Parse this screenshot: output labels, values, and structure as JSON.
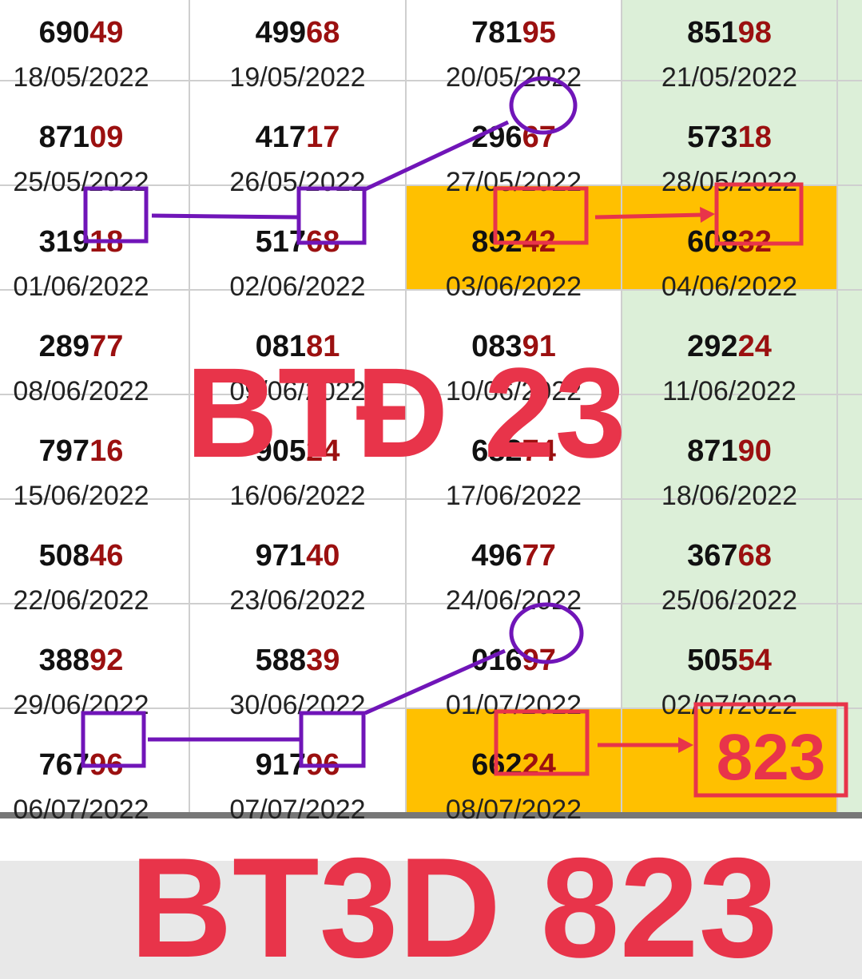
{
  "table": {
    "rows": [
      [
        {
          "head": "690",
          "tail": "49",
          "date": "18/05/2022"
        },
        {
          "head": "499",
          "tail": "68",
          "date": "19/05/2022"
        },
        {
          "head": "781",
          "tail": "95",
          "date": "20/05/2022"
        },
        {
          "head": "851",
          "tail": "98",
          "date": "21/05/2022"
        }
      ],
      [
        {
          "head": "871",
          "tail": "09",
          "date": "25/05/2022"
        },
        {
          "head": "417",
          "tail": "17",
          "date": "26/05/2022"
        },
        {
          "head": "296",
          "tail": "67",
          "date": "27/05/2022"
        },
        {
          "head": "573",
          "tail": "18",
          "date": "28/05/2022"
        }
      ],
      [
        {
          "head": "319",
          "tail": "18",
          "date": "01/06/2022"
        },
        {
          "head": "517",
          "tail": "68",
          "date": "02/06/2022"
        },
        {
          "head": "892",
          "tail": "42",
          "date": "03/06/2022"
        },
        {
          "head": "608",
          "tail": "32",
          "date": "04/06/2022"
        }
      ],
      [
        {
          "head": "289",
          "tail": "77",
          "date": "08/06/2022"
        },
        {
          "head": "081",
          "tail": "81",
          "date": "09/06/2022"
        },
        {
          "head": "083",
          "tail": "91",
          "date": "10/06/2022"
        },
        {
          "head": "292",
          "tail": "24",
          "date": "11/06/2022"
        }
      ],
      [
        {
          "head": "797",
          "tail": "16",
          "date": "15/06/2022"
        },
        {
          "head": "905",
          "tail": "24",
          "date": "16/06/2022"
        },
        {
          "head": "682",
          "tail": "74",
          "date": "17/06/2022"
        },
        {
          "head": "871",
          "tail": "90",
          "date": "18/06/2022"
        }
      ],
      [
        {
          "head": "508",
          "tail": "46",
          "date": "22/06/2022"
        },
        {
          "head": "971",
          "tail": "40",
          "date": "23/06/2022"
        },
        {
          "head": "496",
          "tail": "77",
          "date": "24/06/2022"
        },
        {
          "head": "367",
          "tail": "68",
          "date": "25/06/2022"
        }
      ],
      [
        {
          "head": "388",
          "tail": "92",
          "date": "29/06/2022"
        },
        {
          "head": "588",
          "tail": "39",
          "date": "30/06/2022"
        },
        {
          "head": "016",
          "tail": "97",
          "date": "01/07/2022"
        },
        {
          "head": "505",
          "tail": "54",
          "date": "02/07/2022"
        }
      ],
      [
        {
          "head": "767",
          "tail": "96",
          "date": "06/07/2022"
        },
        {
          "head": "917",
          "tail": "96",
          "date": "07/07/2022"
        },
        {
          "head": "662",
          "tail": "24",
          "date": "08/07/2022"
        }
      ]
    ]
  },
  "highlight": "823",
  "overlay": "BTĐ 23",
  "footer": "BT3D 823"
}
